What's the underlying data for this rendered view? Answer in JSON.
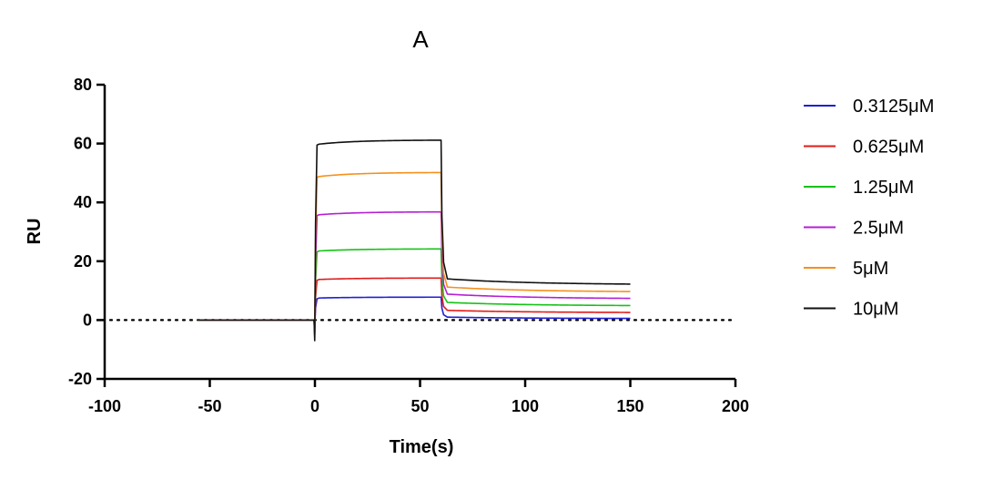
{
  "chart_data": {
    "type": "line",
    "title": "A",
    "xlabel": "Time(s)",
    "ylabel": "RU",
    "xlim": [
      -100,
      200
    ],
    "ylim": [
      -20,
      80
    ],
    "xticks": [
      -100,
      -50,
      0,
      50,
      100,
      150,
      200
    ],
    "yticks": [
      -20,
      0,
      20,
      40,
      60,
      80
    ],
    "reference_line": {
      "y": 0,
      "style": "dotted"
    },
    "legend_position": "right",
    "phases": {
      "baseline_start": -56,
      "injection_start": 0,
      "injection_end": 60,
      "dissociation_end": 150
    },
    "series": [
      {
        "name": "0.3125μM",
        "color": "#1f1fd6",
        "dip": -3,
        "assoc_start": 7.5,
        "assoc_end": 7.8,
        "diss_start": 1.0,
        "diss_end": 0.5
      },
      {
        "name": "0.625μM",
        "color": "#e01b1b",
        "dip": -4,
        "assoc_start": 13.8,
        "assoc_end": 14.3,
        "diss_start": 3.3,
        "diss_end": 2.5
      },
      {
        "name": "1.25μM",
        "color": "#17c217",
        "dip": -5,
        "assoc_start": 23.5,
        "assoc_end": 24.2,
        "diss_start": 6.0,
        "diss_end": 4.8
      },
      {
        "name": "2.5μM",
        "color": "#b51fd4",
        "dip": -5,
        "assoc_start": 35.8,
        "assoc_end": 36.8,
        "diss_start": 8.8,
        "diss_end": 7.2
      },
      {
        "name": "5μM",
        "color": "#f5901e",
        "dip": -6,
        "assoc_start": 48.8,
        "assoc_end": 50.2,
        "diss_start": 11.2,
        "diss_end": 9.5
      },
      {
        "name": "10μM",
        "color": "#111111",
        "dip": -7,
        "assoc_start": 59.8,
        "assoc_end": 61.2,
        "diss_start": 14.0,
        "diss_end": 12.0
      }
    ]
  }
}
